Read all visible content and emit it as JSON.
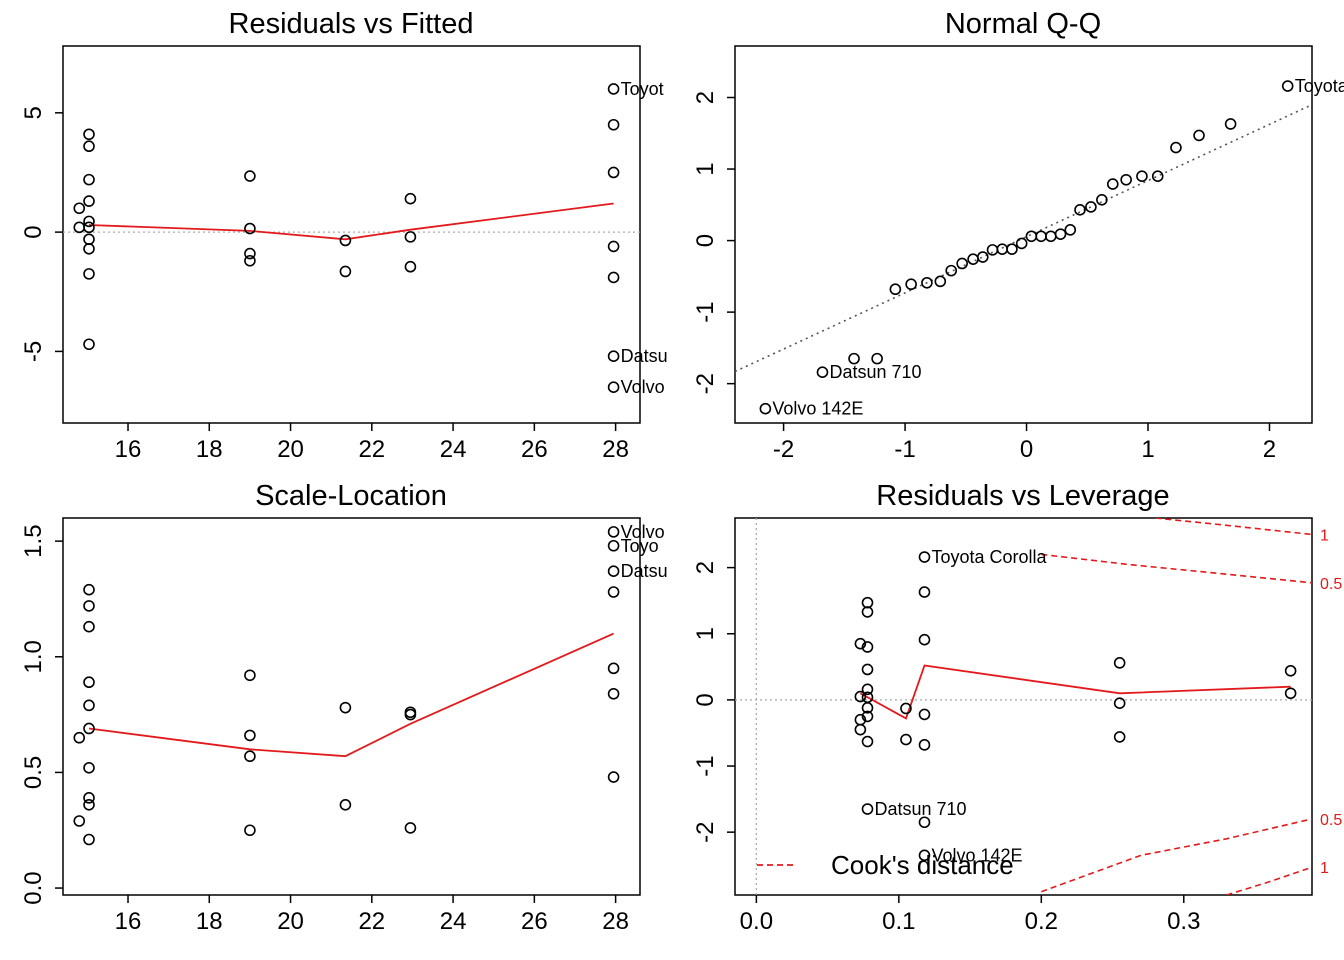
{
  "chart_data": [
    {
      "type": "scatter",
      "title": "Residuals vs Fitted",
      "xlabel": "",
      "ylabel": "",
      "xlim": [
        14.4,
        28.6
      ],
      "ylim": [
        -8.0,
        7.8
      ],
      "xticks": [
        16,
        18,
        20,
        22,
        24,
        26,
        28
      ],
      "yticks": [
        -5,
        0,
        5
      ],
      "points": [
        {
          "x": 14.8,
          "y": 1.0
        },
        {
          "x": 14.8,
          "y": 0.2
        },
        {
          "x": 15.04,
          "y": 4.1
        },
        {
          "x": 15.04,
          "y": 3.6
        },
        {
          "x": 15.04,
          "y": 2.2
        },
        {
          "x": 15.04,
          "y": 1.3
        },
        {
          "x": 15.04,
          "y": 0.45
        },
        {
          "x": 15.04,
          "y": 0.2
        },
        {
          "x": 15.04,
          "y": -0.3
        },
        {
          "x": 15.04,
          "y": -0.7
        },
        {
          "x": 15.04,
          "y": -1.75
        },
        {
          "x": 15.04,
          "y": -4.7
        },
        {
          "x": 19.0,
          "y": 2.35
        },
        {
          "x": 19.0,
          "y": 0.15
        },
        {
          "x": 19.0,
          "y": -0.9
        },
        {
          "x": 19.0,
          "y": -1.2
        },
        {
          "x": 21.35,
          "y": -0.35
        },
        {
          "x": 21.35,
          "y": -1.65
        },
        {
          "x": 22.95,
          "y": 1.4
        },
        {
          "x": 22.95,
          "y": -0.2
        },
        {
          "x": 22.95,
          "y": -1.45
        },
        {
          "x": 27.95,
          "y": 6.0,
          "label": "Toyot"
        },
        {
          "x": 27.95,
          "y": 4.5
        },
        {
          "x": 27.95,
          "y": 2.5
        },
        {
          "x": 27.95,
          "y": -0.6
        },
        {
          "x": 27.95,
          "y": -1.9
        },
        {
          "x": 27.95,
          "y": -5.2,
          "label": "Datsu"
        },
        {
          "x": 27.95,
          "y": -6.5,
          "label": "Volvo"
        }
      ],
      "smooth": [
        [
          15.04,
          0.3
        ],
        [
          19.0,
          0.05
        ],
        [
          21.35,
          -0.3
        ],
        [
          22.95,
          0.1
        ],
        [
          27.95,
          1.2
        ]
      ],
      "hline": 0
    },
    {
      "type": "scatter",
      "title": "Normal Q-Q",
      "xlabel": "",
      "ylabel": "",
      "xlim": [
        -2.4,
        2.35
      ],
      "ylim": [
        -2.55,
        2.72
      ],
      "xticks": [
        -2,
        -1,
        0,
        1,
        2
      ],
      "yticks": [
        -2,
        -1,
        0,
        1,
        2
      ],
      "points": [
        {
          "x": -2.15,
          "y": -2.35,
          "label": "Volvo 142E"
        },
        {
          "x": -1.68,
          "y": -1.84,
          "label": "Datsun 710"
        },
        {
          "x": -1.42,
          "y": -1.65
        },
        {
          "x": -1.23,
          "y": -1.65
        },
        {
          "x": -1.08,
          "y": -0.68
        },
        {
          "x": -0.95,
          "y": -0.61
        },
        {
          "x": -0.82,
          "y": -0.59
        },
        {
          "x": -0.71,
          "y": -0.57
        },
        {
          "x": -0.62,
          "y": -0.42
        },
        {
          "x": -0.53,
          "y": -0.32
        },
        {
          "x": -0.44,
          "y": -0.26
        },
        {
          "x": -0.36,
          "y": -0.23
        },
        {
          "x": -0.28,
          "y": -0.13
        },
        {
          "x": -0.2,
          "y": -0.12
        },
        {
          "x": -0.12,
          "y": -0.12
        },
        {
          "x": -0.04,
          "y": -0.04
        },
        {
          "x": 0.04,
          "y": 0.06
        },
        {
          "x": 0.12,
          "y": 0.06
        },
        {
          "x": 0.2,
          "y": 0.06
        },
        {
          "x": 0.28,
          "y": 0.09
        },
        {
          "x": 0.36,
          "y": 0.15
        },
        {
          "x": 0.44,
          "y": 0.43
        },
        {
          "x": 0.53,
          "y": 0.47
        },
        {
          "x": 0.62,
          "y": 0.57
        },
        {
          "x": 0.71,
          "y": 0.79
        },
        {
          "x": 0.82,
          "y": 0.85
        },
        {
          "x": 0.95,
          "y": 0.9
        },
        {
          "x": 1.08,
          "y": 0.9
        },
        {
          "x": 1.23,
          "y": 1.3
        },
        {
          "x": 1.42,
          "y": 1.47
        },
        {
          "x": 1.68,
          "y": 1.63
        },
        {
          "x": 2.15,
          "y": 2.16,
          "label": "Toyota Corolla"
        }
      ],
      "refline": [
        [
          -2.4,
          -1.83
        ],
        [
          2.35,
          1.9
        ]
      ]
    },
    {
      "type": "scatter",
      "title": "Scale-Location",
      "xlabel": "",
      "ylabel": "",
      "xlim": [
        14.4,
        28.6
      ],
      "ylim": [
        -0.03,
        1.6
      ],
      "xticks": [
        16,
        18,
        20,
        22,
        24,
        26,
        28
      ],
      "yticks": [
        0.0,
        0.5,
        1.0,
        1.5
      ],
      "points": [
        {
          "x": 14.8,
          "y": 0.65
        },
        {
          "x": 14.8,
          "y": 0.29
        },
        {
          "x": 15.04,
          "y": 1.29
        },
        {
          "x": 15.04,
          "y": 1.22
        },
        {
          "x": 15.04,
          "y": 1.13
        },
        {
          "x": 15.04,
          "y": 0.89
        },
        {
          "x": 15.04,
          "y": 0.79
        },
        {
          "x": 15.04,
          "y": 0.69
        },
        {
          "x": 15.04,
          "y": 0.52
        },
        {
          "x": 15.04,
          "y": 0.39
        },
        {
          "x": 15.04,
          "y": 0.36
        },
        {
          "x": 15.04,
          "y": 0.21
        },
        {
          "x": 19.0,
          "y": 0.92
        },
        {
          "x": 19.0,
          "y": 0.66
        },
        {
          "x": 19.0,
          "y": 0.57
        },
        {
          "x": 19.0,
          "y": 0.25
        },
        {
          "x": 21.35,
          "y": 0.78
        },
        {
          "x": 21.35,
          "y": 0.36
        },
        {
          "x": 22.95,
          "y": 0.76
        },
        {
          "x": 22.95,
          "y": 0.75
        },
        {
          "x": 22.95,
          "y": 0.26
        },
        {
          "x": 27.95,
          "y": 1.54,
          "label": "Volvo"
        },
        {
          "x": 27.95,
          "y": 1.48,
          "label": "Toyo"
        },
        {
          "x": 27.95,
          "y": 1.37,
          "label": "Datsu"
        },
        {
          "x": 27.95,
          "y": 1.28
        },
        {
          "x": 27.95,
          "y": 0.95
        },
        {
          "x": 27.95,
          "y": 0.84
        },
        {
          "x": 27.95,
          "y": 0.48
        }
      ],
      "smooth": [
        [
          15.04,
          0.69
        ],
        [
          19.0,
          0.6
        ],
        [
          21.35,
          0.57
        ],
        [
          22.95,
          0.71
        ],
        [
          27.95,
          1.1
        ]
      ]
    },
    {
      "type": "scatter",
      "title": "Residuals vs Leverage",
      "xlabel": "",
      "ylabel": "",
      "xlim": [
        -0.015,
        0.39
      ],
      "ylim": [
        -2.95,
        2.75
      ],
      "xticks": [
        0.0,
        0.1,
        0.2,
        0.3
      ],
      "yticks": [
        -2,
        -1,
        0,
        1,
        2
      ],
      "points": [
        {
          "x": 0.073,
          "y": 0.85
        },
        {
          "x": 0.073,
          "y": 0.05
        },
        {
          "x": 0.073,
          "y": -0.3
        },
        {
          "x": 0.073,
          "y": -0.45
        },
        {
          "x": 0.078,
          "y": 1.47
        },
        {
          "x": 0.078,
          "y": 1.33
        },
        {
          "x": 0.078,
          "y": 0.8
        },
        {
          "x": 0.078,
          "y": 0.46
        },
        {
          "x": 0.078,
          "y": 0.16
        },
        {
          "x": 0.078,
          "y": 0.04
        },
        {
          "x": 0.078,
          "y": -0.12
        },
        {
          "x": 0.078,
          "y": -0.25
        },
        {
          "x": 0.078,
          "y": -0.63
        },
        {
          "x": 0.078,
          "y": -1.65,
          "label": "Datsun 710"
        },
        {
          "x": 0.105,
          "y": -0.13
        },
        {
          "x": 0.105,
          "y": -0.6
        },
        {
          "x": 0.118,
          "y": 2.16,
          "label": "Toyota Corolla"
        },
        {
          "x": 0.118,
          "y": 1.63
        },
        {
          "x": 0.118,
          "y": 0.91
        },
        {
          "x": 0.118,
          "y": -0.22
        },
        {
          "x": 0.118,
          "y": -0.68
        },
        {
          "x": 0.118,
          "y": -1.85
        },
        {
          "x": 0.118,
          "y": -2.35,
          "label": "Volvo 142E"
        },
        {
          "x": 0.255,
          "y": 0.56
        },
        {
          "x": 0.255,
          "y": -0.05
        },
        {
          "x": 0.255,
          "y": -0.56
        },
        {
          "x": 0.375,
          "y": 0.44
        },
        {
          "x": 0.375,
          "y": 0.1
        }
      ],
      "smooth": [
        [
          0.073,
          0.1
        ],
        [
          0.105,
          -0.28
        ],
        [
          0.118,
          0.52
        ],
        [
          0.255,
          0.1
        ],
        [
          0.375,
          0.2
        ]
      ],
      "hline": 0,
      "vline": 0,
      "cook_labels": [
        {
          "text": "1",
          "y": 2.5
        },
        {
          "text": "0.5",
          "y": 1.77
        },
        {
          "text": "0.5",
          "y": -1.8
        },
        {
          "text": "1",
          "y": -2.53
        }
      ],
      "cook_curves": [
        [
          [
            0.28,
            2.75
          ],
          [
            0.33,
            2.64
          ],
          [
            0.39,
            2.5
          ]
        ],
        [
          [
            0.2,
            2.2
          ],
          [
            0.26,
            2.05
          ],
          [
            0.33,
            1.9
          ],
          [
            0.39,
            1.77
          ]
        ],
        [
          [
            0.2,
            -2.9
          ],
          [
            0.27,
            -2.35
          ],
          [
            0.33,
            -2.1
          ],
          [
            0.39,
            -1.8
          ]
        ],
        [
          [
            0.33,
            -2.95
          ],
          [
            0.36,
            -2.75
          ],
          [
            0.39,
            -2.53
          ]
        ]
      ],
      "legend": {
        "text": "Cook's distance",
        "position": "bottom-left"
      }
    }
  ]
}
